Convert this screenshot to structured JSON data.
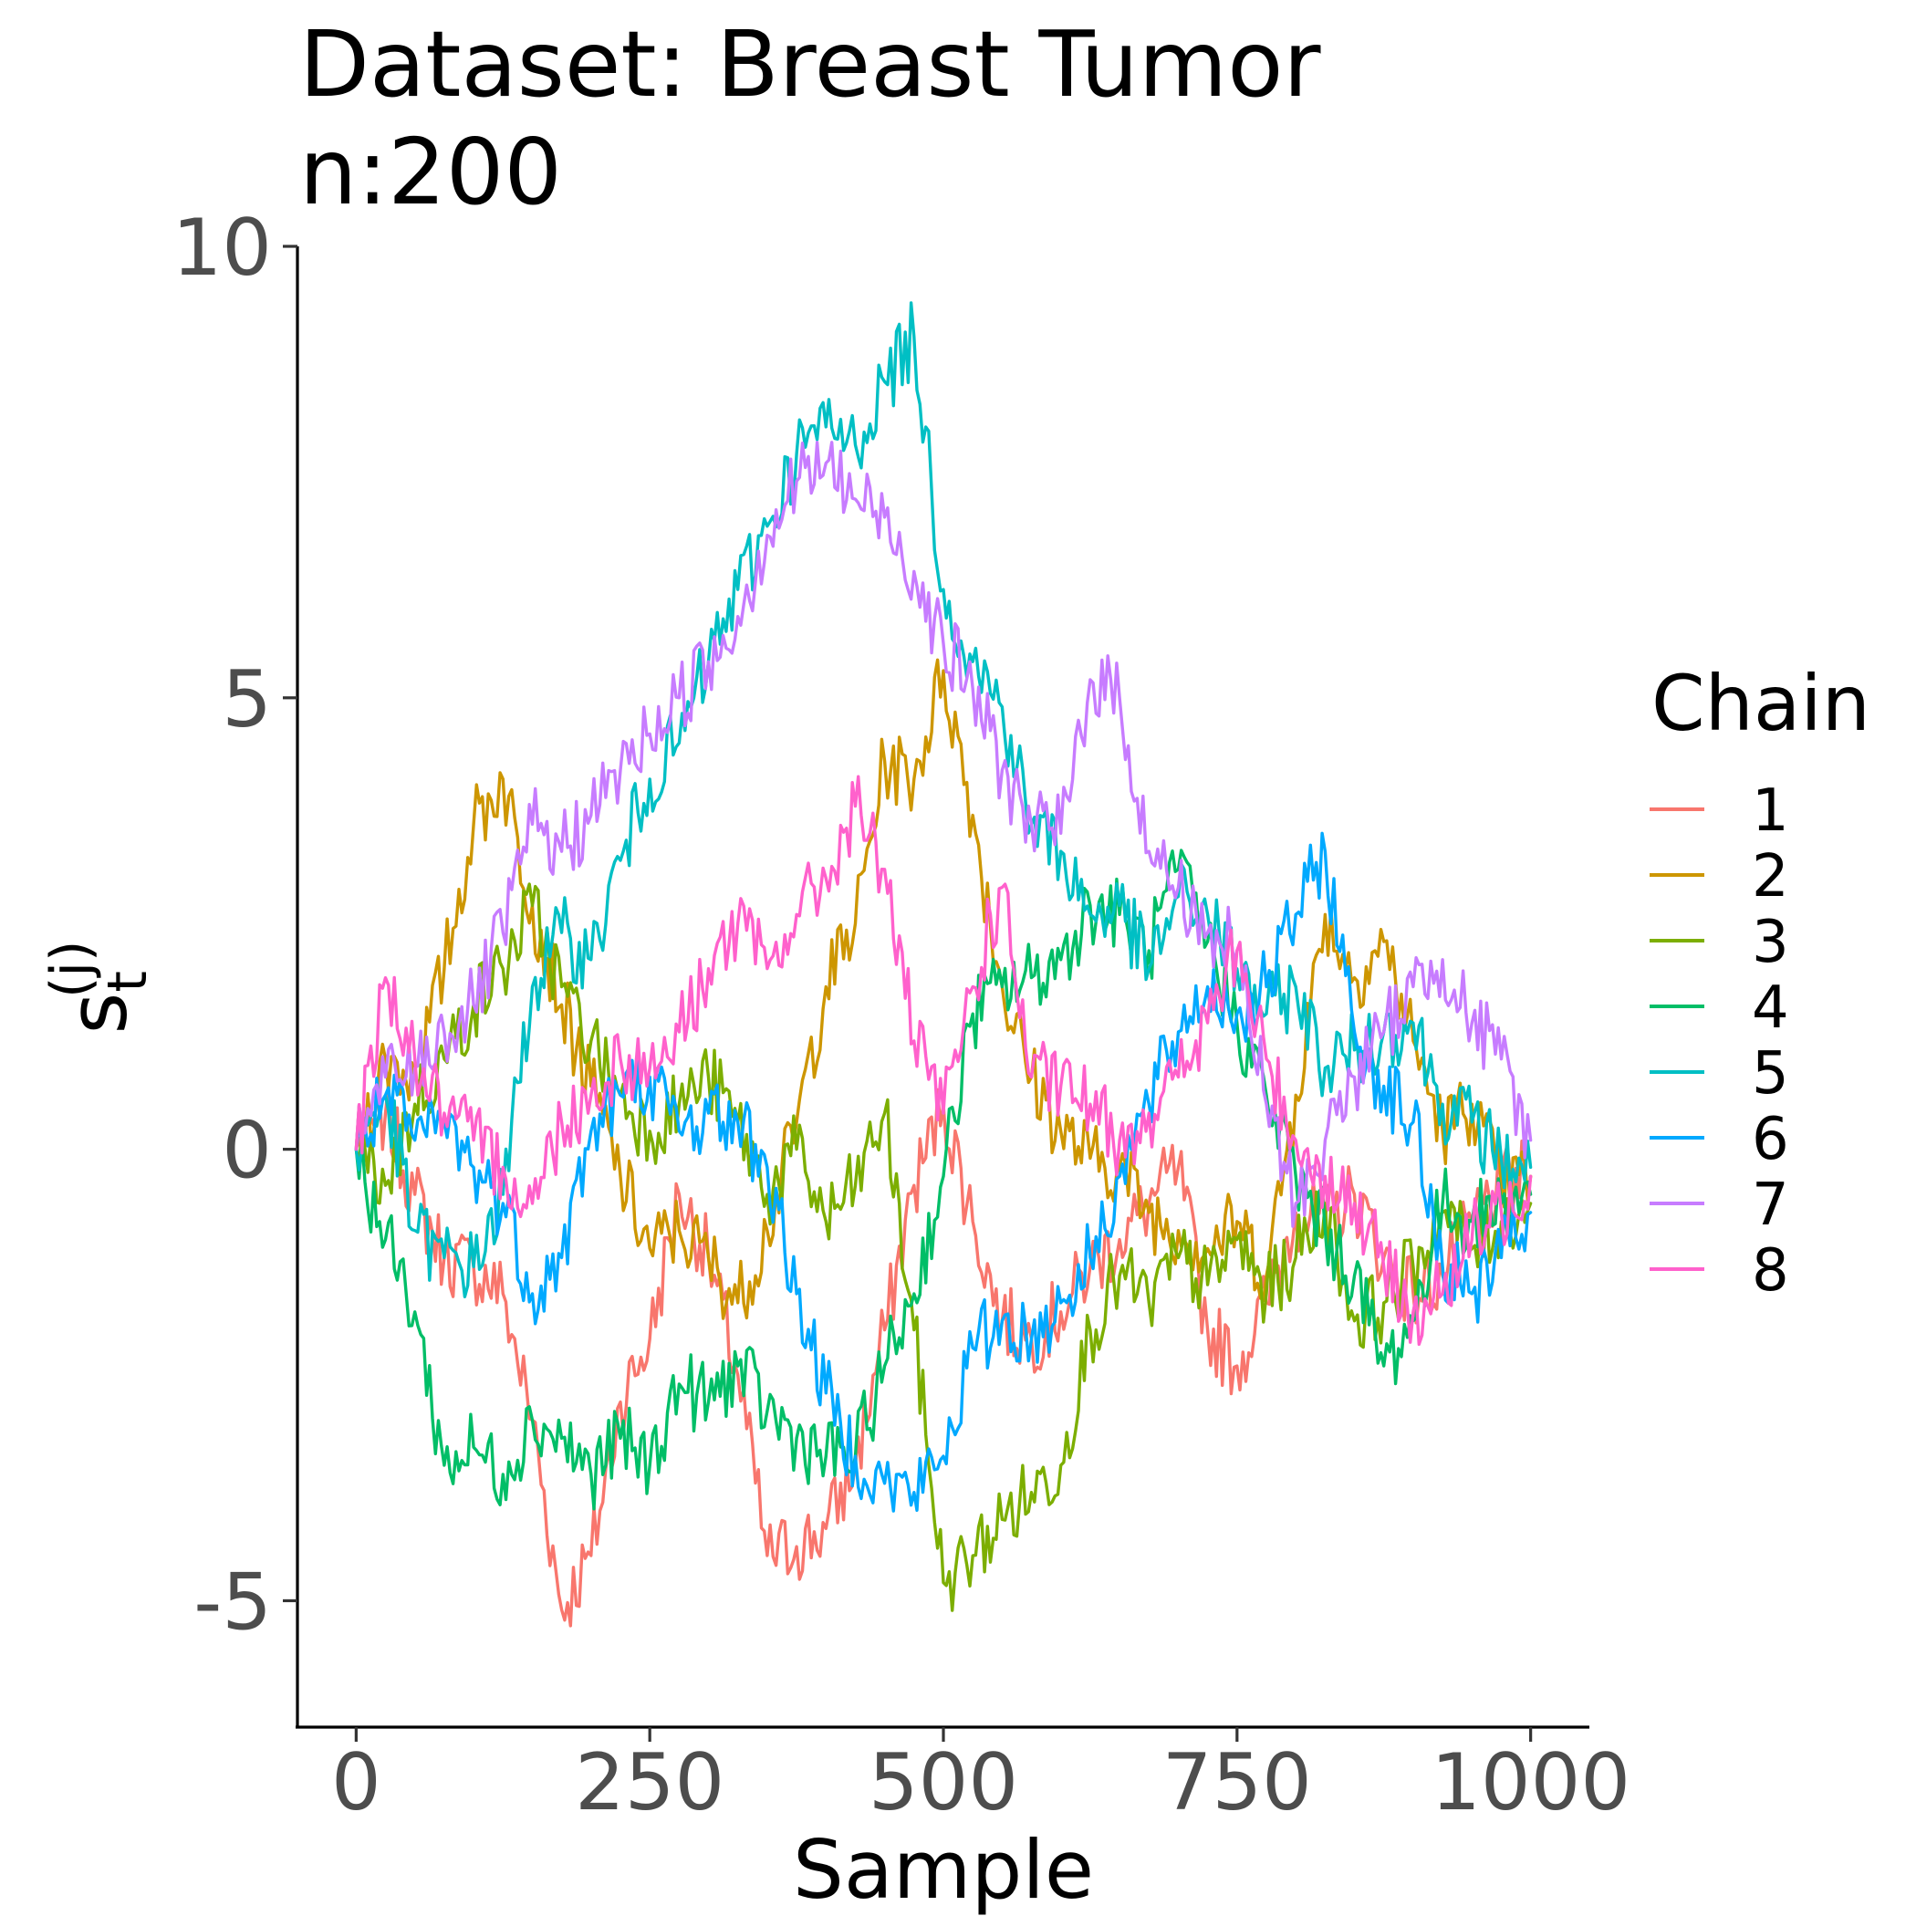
{
  "chart_data": {
    "type": "line",
    "title": [
      "Dataset: Breast Tumor",
      "n:200"
    ],
    "xlabel": "Sample",
    "ylabel": {
      "base": "s",
      "subscript": "t",
      "superscript": "(j)"
    },
    "xlim": [
      -50,
      1050
    ],
    "ylim": [
      -6.4,
      10
    ],
    "x_ticks": [
      0,
      250,
      500,
      750,
      1000
    ],
    "x_tick_labels": [
      "0",
      "250",
      "500",
      "750",
      "1000"
    ],
    "y_ticks": [
      -5,
      0,
      5,
      10
    ],
    "y_tick_labels": [
      "-5",
      "0",
      "5",
      "10"
    ],
    "grid": false,
    "legend": {
      "title": "Chain",
      "position": "right"
    },
    "series": [
      {
        "name": "1",
        "color": "#F8766D",
        "x": [
          0,
          25,
          50,
          75,
          100,
          125,
          150,
          175,
          200,
          225,
          250,
          275,
          300,
          325,
          350,
          375,
          400,
          425,
          450,
          475,
          500,
          525,
          550,
          575,
          600,
          625,
          650,
          675,
          700,
          725,
          750,
          775,
          800,
          825,
          850,
          875,
          900,
          925,
          950,
          975,
          1000
        ],
        "y": [
          0,
          0.4,
          -0.5,
          -1.2,
          -1.3,
          -1.6,
          -3.0,
          -5.1,
          -4.5,
          -2.8,
          -2.1,
          -0.5,
          -1.2,
          -2.5,
          -4.5,
          -4.4,
          -4.2,
          -3.5,
          -2.0,
          -0.4,
          0.5,
          -0.8,
          -1.9,
          -2.1,
          -1.8,
          -1.3,
          -1.0,
          -0.6,
          -0.2,
          -2.0,
          -2.4,
          -1.7,
          -0.7,
          -0.8,
          -0.5,
          -1.2,
          -1.6,
          -1.4,
          -0.8,
          -0.4,
          -0.3
        ]
      },
      {
        "name": "2",
        "color": "#CD9600",
        "x": [
          0,
          25,
          50,
          75,
          100,
          125,
          150,
          175,
          200,
          225,
          250,
          275,
          300,
          325,
          350,
          375,
          400,
          425,
          450,
          475,
          500,
          525,
          550,
          575,
          600,
          625,
          650,
          675,
          700,
          725,
          750,
          775,
          800,
          825,
          850,
          875,
          900,
          925,
          950,
          975,
          1000
        ],
        "y": [
          0,
          1.0,
          0.8,
          2.0,
          3.6,
          4.1,
          2.7,
          1.6,
          0.7,
          -0.3,
          -1.1,
          -0.9,
          -1.2,
          -1.7,
          -0.9,
          0.3,
          1.8,
          2.5,
          4.3,
          4.1,
          5.3,
          3.7,
          1.8,
          0.8,
          0.2,
          -0.1,
          -0.2,
          -0.7,
          -0.9,
          -1.1,
          -0.8,
          -1.4,
          0.6,
          2.6,
          1.9,
          2.3,
          1.2,
          0.2,
          0.5,
          -0.4,
          -0.3
        ]
      },
      {
        "name": "3",
        "color": "#7CAE00",
        "x": [
          0,
          25,
          50,
          75,
          100,
          125,
          150,
          175,
          200,
          225,
          250,
          275,
          300,
          325,
          350,
          375,
          400,
          425,
          450,
          475,
          500,
          525,
          550,
          575,
          600,
          625,
          650,
          675,
          700,
          725,
          750,
          775,
          800,
          825,
          850,
          875,
          900,
          925,
          950,
          975,
          1000
        ],
        "y": [
          0,
          -0.4,
          0.5,
          1.0,
          1.6,
          2.0,
          2.7,
          1.8,
          1.2,
          0.6,
          0.2,
          0.5,
          0.8,
          0.3,
          -0.5,
          0.0,
          -0.8,
          -0.4,
          0.4,
          -2.0,
          -4.8,
          -4.5,
          -4.1,
          -3.8,
          -3.5,
          -2.0,
          -1.4,
          -1.7,
          -1.2,
          -1.5,
          -1.0,
          -1.6,
          -1.2,
          -0.6,
          -1.9,
          -1.7,
          -1.3,
          -0.7,
          -1.1,
          -0.8,
          -0.6
        ]
      },
      {
        "name": "4",
        "color": "#00BE67",
        "x": [
          0,
          25,
          50,
          75,
          100,
          125,
          150,
          175,
          200,
          225,
          250,
          275,
          300,
          325,
          350,
          375,
          400,
          425,
          450,
          475,
          500,
          525,
          550,
          575,
          600,
          625,
          650,
          675,
          700,
          725,
          750,
          775,
          800,
          825,
          850,
          875,
          900,
          925,
          950,
          975,
          1000
        ],
        "y": [
          0,
          -1.0,
          -1.8,
          -3.5,
          -3.3,
          -3.6,
          -3.0,
          -3.2,
          -3.6,
          -3.2,
          -3.5,
          -2.6,
          -2.8,
          -2.4,
          -2.9,
          -3.2,
          -3.4,
          -3.4,
          -2.4,
          -1.6,
          -0.3,
          1.5,
          1.8,
          1.9,
          2.1,
          2.7,
          2.6,
          2.2,
          3.1,
          2.3,
          1.4,
          0.6,
          -0.3,
          -0.9,
          -1.4,
          -2.4,
          -1.9,
          -0.6,
          -0.8,
          -0.6,
          -0.5
        ]
      },
      {
        "name": "5",
        "color": "#00BFC4",
        "x": [
          0,
          25,
          50,
          75,
          100,
          125,
          150,
          175,
          200,
          225,
          250,
          275,
          300,
          325,
          350,
          375,
          400,
          425,
          450,
          475,
          500,
          525,
          550,
          575,
          600,
          625,
          650,
          675,
          700,
          725,
          750,
          775,
          800,
          825,
          850,
          875,
          900,
          925,
          950,
          975,
          1000
        ],
        "y": [
          0,
          0.6,
          -0.9,
          -1.2,
          -1.3,
          -0.5,
          1.8,
          2.4,
          2.1,
          3.2,
          4.1,
          4.5,
          5.4,
          6.2,
          6.9,
          7.7,
          8.0,
          7.8,
          8.5,
          9.0,
          6.2,
          5.4,
          4.9,
          3.6,
          3.3,
          2.6,
          2.7,
          2.0,
          2.8,
          2.6,
          2.0,
          1.5,
          1.8,
          0.9,
          1.1,
          1.3,
          1.4,
          0.5,
          0.3,
          -0.1,
          -0.2
        ]
      },
      {
        "name": "6",
        "color": "#00A9FF",
        "x": [
          0,
          25,
          50,
          75,
          100,
          125,
          150,
          175,
          200,
          225,
          250,
          275,
          300,
          325,
          350,
          375,
          400,
          425,
          450,
          475,
          500,
          525,
          550,
          575,
          600,
          625,
          650,
          675,
          700,
          725,
          750,
          775,
          800,
          825,
          850,
          875,
          900,
          925,
          950,
          975,
          1000
        ],
        "y": [
          0,
          0.6,
          0.1,
          0.3,
          -0.2,
          -0.6,
          -1.6,
          -1.2,
          0.2,
          0.6,
          0.8,
          0.2,
          0.4,
          0.3,
          -0.2,
          -1.6,
          -2.7,
          -3.4,
          -3.7,
          -3.8,
          -3.4,
          -2.2,
          -1.9,
          -2.1,
          -1.7,
          -1.2,
          -0.3,
          0.5,
          1.3,
          1.8,
          1.5,
          1.8,
          2.6,
          3.3,
          1.3,
          0.7,
          0.3,
          -1.3,
          -1.6,
          -1.2,
          -0.7
        ]
      },
      {
        "name": "7",
        "color": "#C77CFF",
        "x": [
          0,
          25,
          50,
          75,
          100,
          125,
          150,
          175,
          200,
          225,
          250,
          275,
          300,
          325,
          350,
          375,
          400,
          425,
          450,
          475,
          500,
          525,
          550,
          575,
          600,
          625,
          650,
          675,
          700,
          725,
          750,
          775,
          800,
          825,
          850,
          875,
          900,
          925,
          950,
          975,
          1000
        ],
        "y": [
          0,
          0.8,
          0.9,
          1.3,
          1.6,
          2.4,
          3.6,
          3.3,
          3.7,
          4.2,
          4.6,
          5.0,
          5.4,
          5.9,
          6.8,
          7.4,
          7.6,
          7.2,
          7.0,
          6.4,
          5.6,
          5.1,
          4.2,
          3.6,
          3.5,
          5.2,
          5.0,
          3.3,
          2.9,
          2.4,
          2.2,
          0.5,
          -0.6,
          0.1,
          0.8,
          1.3,
          1.8,
          2.1,
          1.4,
          1.0,
          0.1
        ]
      },
      {
        "name": "8",
        "color": "#FF61CC",
        "x": [
          0,
          25,
          50,
          75,
          100,
          125,
          150,
          175,
          200,
          225,
          250,
          275,
          300,
          325,
          350,
          375,
          400,
          425,
          450,
          475,
          500,
          525,
          550,
          575,
          600,
          625,
          650,
          675,
          700,
          725,
          750,
          775,
          800,
          825,
          850,
          875,
          900,
          925,
          950,
          975,
          1000
        ],
        "y": [
          0,
          1.9,
          1.0,
          0.4,
          0.1,
          -0.2,
          -0.6,
          0.3,
          0.6,
          1.0,
          0.9,
          1.3,
          2.0,
          2.5,
          2.0,
          2.6,
          3.0,
          3.8,
          3.1,
          1.2,
          0.4,
          1.8,
          2.9,
          0.8,
          0.7,
          0.5,
          0.1,
          0.4,
          0.8,
          1.4,
          2.2,
          1.0,
          0.1,
          -0.3,
          -0.6,
          -1.3,
          -1.8,
          -1.6,
          -1.0,
          -0.7,
          -0.3
        ]
      }
    ]
  }
}
